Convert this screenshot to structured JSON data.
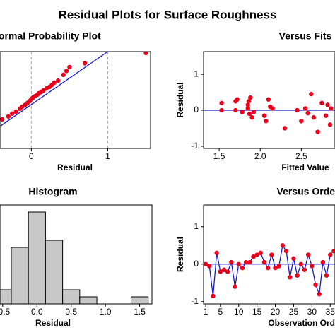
{
  "title": "Residual Plots for Surface Roughness",
  "chart_data": [
    {
      "type": "normal_probability",
      "title": "ormal Probability Plot",
      "xlabel": "Residual",
      "x": [
        -0.38,
        -0.3,
        -0.25,
        -0.2,
        -0.15,
        -0.12,
        -0.08,
        -0.05,
        -0.02,
        0.0,
        0.02,
        0.05,
        0.08,
        0.1,
        0.13,
        0.16,
        0.2,
        0.24,
        0.27,
        0.3,
        0.35,
        0.42,
        0.46,
        0.5,
        0.7,
        1.5
      ],
      "y": [
        -1.0,
        -0.85,
        -0.7,
        -0.6,
        -0.45,
        -0.35,
        -0.25,
        -0.15,
        -0.05,
        0.05,
        0.12,
        0.2,
        0.28,
        0.35,
        0.42,
        0.5,
        0.6,
        0.68,
        0.78,
        0.9,
        1.0,
        1.3,
        1.5,
        1.7,
        1.9,
        2.43
      ],
      "fit_x": [
        -0.4,
        1.0
      ],
      "fit_y": [
        -1.33,
        2.5
      ],
      "xlim": [
        -0.41,
        1.56
      ],
      "ylim": [
        -2.5,
        2.5
      ],
      "xticks": [
        0,
        1
      ],
      "grid": true,
      "color": "#e8001c",
      "line_color": "#1a1acc"
    },
    {
      "type": "scatter",
      "title": "Versus Fits",
      "xlabel": "Fitted Value",
      "ylabel": "Residual",
      "x": [
        1.53,
        1.53,
        1.7,
        1.7,
        1.72,
        1.78,
        1.85,
        1.85,
        1.86,
        1.87,
        1.88,
        1.9,
        1.92,
        2.05,
        2.07,
        2.1,
        2.12,
        2.15,
        2.3,
        2.45,
        2.5,
        2.55,
        2.58,
        2.62,
        2.65,
        2.7,
        2.75,
        2.8,
        2.82,
        2.85,
        2.86
      ],
      "y": [
        0.0,
        0.2,
        0.25,
        0.0,
        0.3,
        -0.05,
        0.05,
        0.15,
        0.25,
        -0.1,
        0.35,
        -0.2,
        -0.05,
        -0.15,
        -0.3,
        0.3,
        0.1,
        0.05,
        -0.5,
        0.0,
        -0.3,
        0.05,
        -0.08,
        0.45,
        -0.2,
        -0.6,
        0.2,
        -0.15,
        0.15,
        -0.4,
        0.05
      ],
      "refline": 0,
      "xlim": [
        1.31,
        2.91
      ],
      "ylim": [
        -1.06,
        1.63
      ],
      "xticks": [
        1.5,
        {
          "value": 2,
          "label": "2.0"
        },
        2.5
      ],
      "yticks": [
        -1,
        0,
        1
      ],
      "color": "#e8001c",
      "line_color": "#1a1acc"
    },
    {
      "type": "histogram",
      "title": "Histogram",
      "xlabel": "Residual",
      "bins": [
        -0.625,
        -0.375,
        -0.125,
        0.125,
        0.375,
        0.625,
        0.875,
        1.125,
        1.375,
        1.625
      ],
      "counts": [
        2,
        8,
        13,
        9,
        2,
        1,
        0,
        0,
        1
      ],
      "xlim": [
        -0.54,
        1.68
      ],
      "ylim": [
        0,
        14
      ],
      "xticks": [
        -0.5,
        {
          "value": 0,
          "label": "0.0"
        },
        0.5,
        {
          "value": 1,
          "label": "1.0"
        },
        1.5
      ],
      "color": "#c8c8c8"
    },
    {
      "type": "line",
      "title": "Versus Orde",
      "xlabel": "Observation Ord",
      "ylabel": "Residual",
      "x": [
        1,
        2,
        3,
        4,
        5,
        6,
        7,
        8,
        9,
        10,
        11,
        12,
        13,
        14,
        15,
        16,
        17,
        18,
        19,
        20,
        21,
        22,
        23,
        24,
        25,
        26,
        27,
        28,
        29,
        30,
        31,
        32,
        33,
        34,
        35,
        36
      ],
      "values": [
        0.0,
        -0.05,
        -0.85,
        0.3,
        -0.2,
        -0.15,
        -0.2,
        0.05,
        -0.6,
        0.0,
        -0.1,
        0.05,
        0.05,
        0.2,
        0.25,
        0.3,
        0.05,
        -0.1,
        0.25,
        -0.1,
        -0.05,
        0.5,
        0.35,
        -0.35,
        0.15,
        -0.3,
        0.0,
        -0.15,
        0.25,
        -0.05,
        -0.55,
        -0.8,
        0.05,
        -0.3,
        0.25,
        0.35
      ],
      "refline": 0,
      "xlim": [
        0.4,
        36.3
      ],
      "ylim": [
        -1.06,
        1.58
      ],
      "xticks": [
        1,
        5,
        10,
        15,
        20,
        25,
        30,
        35
      ],
      "yticks": [
        -1,
        0,
        1
      ],
      "color": "#e8001c",
      "line_color": "#1a1acc"
    }
  ]
}
